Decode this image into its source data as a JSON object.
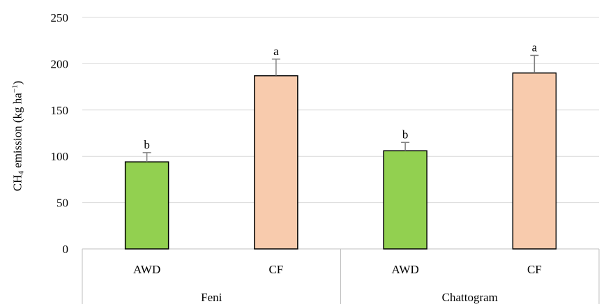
{
  "chart_data": {
    "type": "bar",
    "ylabel": {
      "main": "CH",
      "sub": "4",
      "rest": " emission (kg ha",
      "sup": "−1",
      "end": ")"
    },
    "ylim": [
      0,
      250
    ],
    "yticks": [
      "0",
      "50",
      "100",
      "150",
      "200",
      "250"
    ],
    "grid": true,
    "groups": [
      {
        "name": "Feni",
        "categories": [
          "AWD",
          "CF"
        ]
      },
      {
        "name": "Chattogram",
        "categories": [
          "AWD",
          "CF"
        ]
      }
    ],
    "bars": [
      {
        "group": "Feni",
        "category": "AWD",
        "value": 94,
        "error": 10,
        "letter": "b",
        "color": "#92d050"
      },
      {
        "group": "Feni",
        "category": "CF",
        "value": 187,
        "error": 18,
        "letter": "a",
        "color": "#f8cbad"
      },
      {
        "group": "Chattogram",
        "category": "AWD",
        "value": 106,
        "error": 9,
        "letter": "b",
        "color": "#92d050"
      },
      {
        "group": "Chattogram",
        "category": "CF",
        "value": 190,
        "error": 19,
        "letter": "a",
        "color": "#f8cbad"
      }
    ],
    "colors": {
      "awd": "#92d050",
      "cf": "#f8cbad",
      "grid": "#d9d9d9",
      "errorbar": "#7f7f7f"
    }
  }
}
